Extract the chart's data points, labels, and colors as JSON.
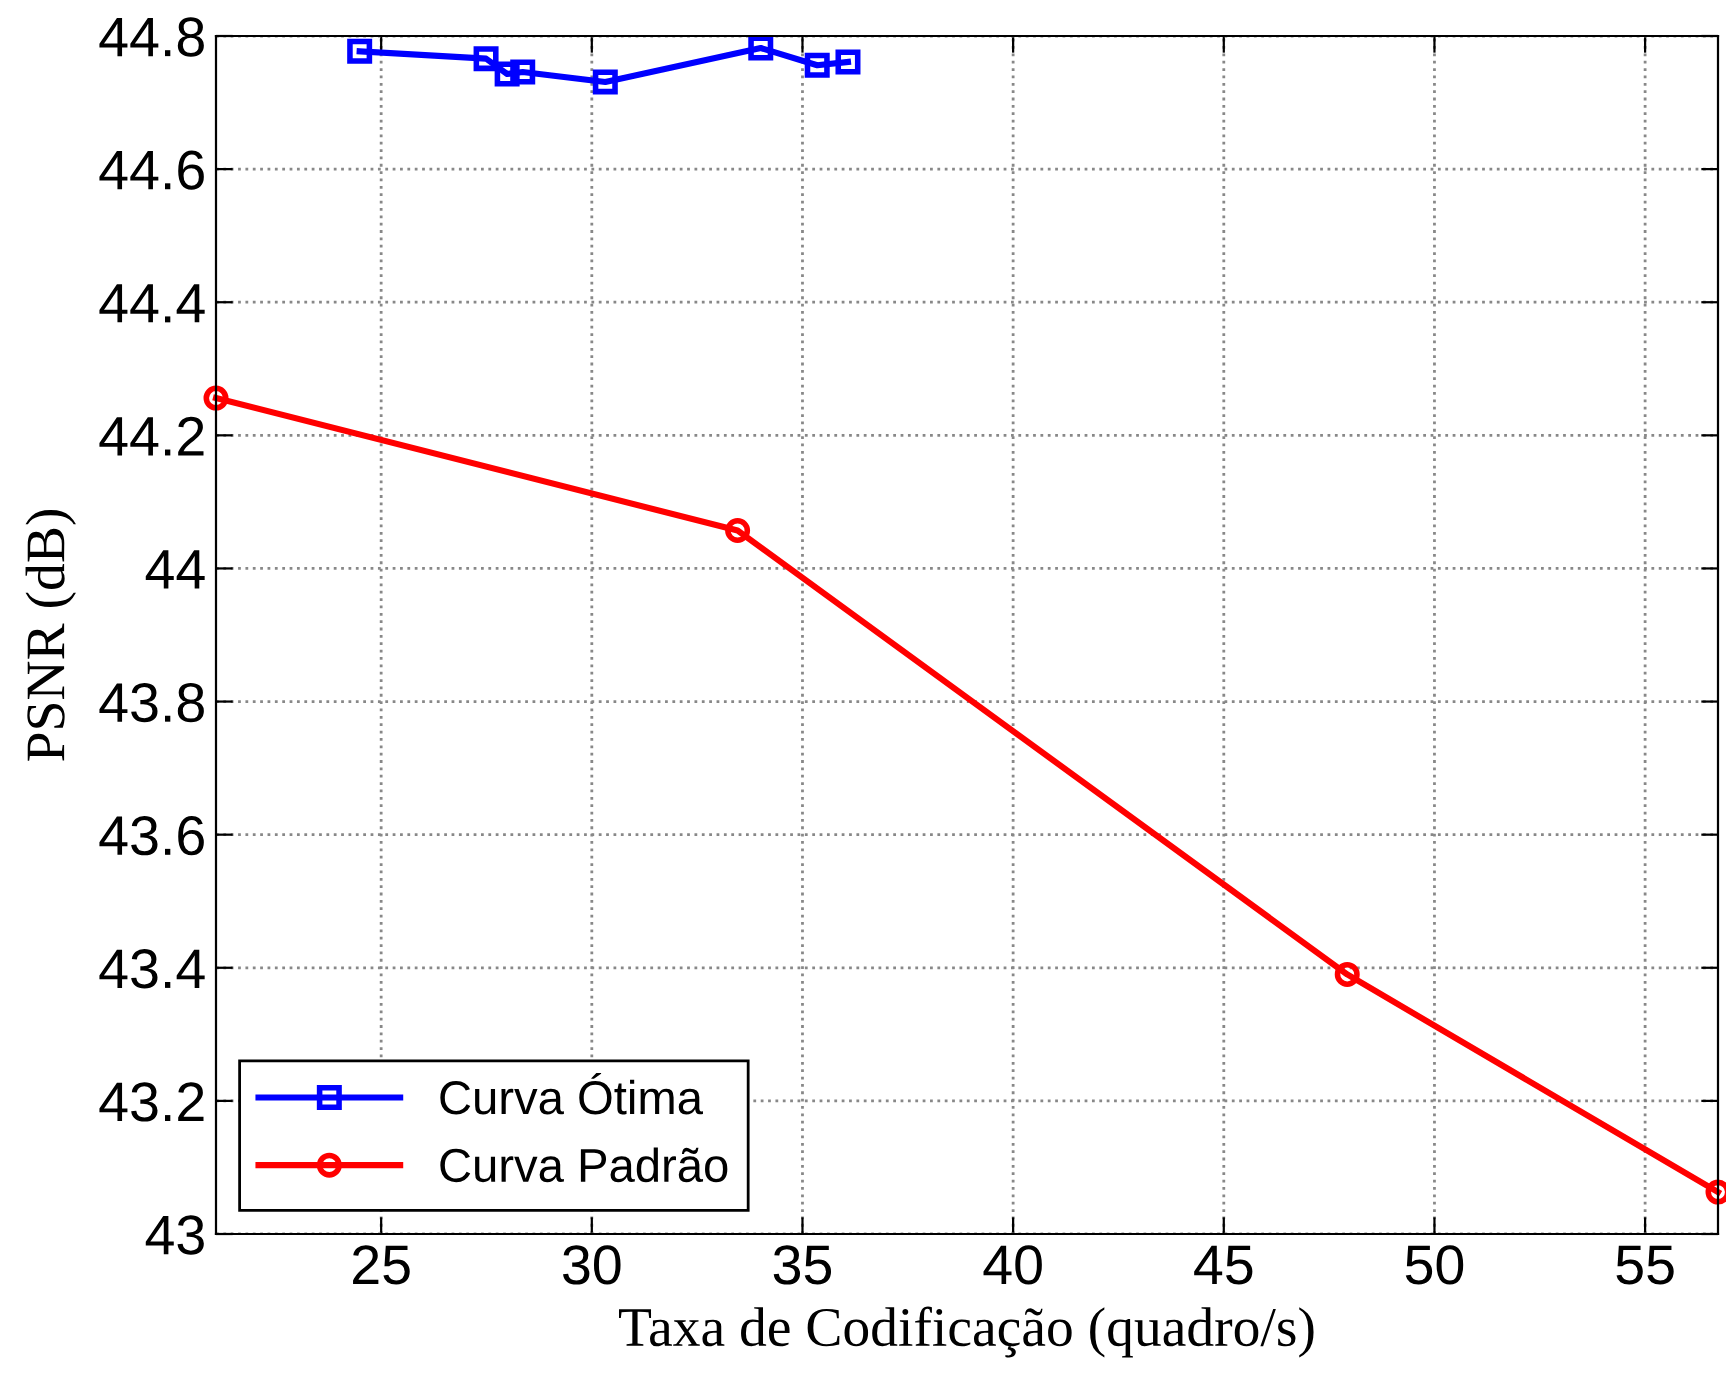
{
  "chart_data": {
    "type": "line",
    "xlabel": "Taxa de Codificação (quadro/s)",
    "ylabel": "PSNR (dB)",
    "series": [
      {
        "name": "Curva Ótima",
        "color": "#0000ff",
        "marker": "square",
        "x": [
          24.49,
          27.49,
          27.99,
          28.36,
          30.32,
          34.01,
          35.35,
          36.08
        ],
        "values": [
          44.777,
          44.766,
          44.743,
          44.746,
          44.731,
          44.782,
          44.756,
          44.761
        ]
      },
      {
        "name": "Curva Padrão",
        "color": "#ff0000",
        "marker": "circle",
        "x": [
          21.08,
          33.46,
          47.93,
          56.73
        ],
        "values": [
          44.256,
          44.057,
          43.39,
          43.063
        ]
      }
    ],
    "xlim": [
      21.08,
      56.73
    ],
    "ylim": [
      43,
      44.8
    ],
    "xticks": [
      25,
      30,
      35,
      40,
      45,
      50,
      55
    ],
    "yticks": [
      43,
      43.2,
      43.4,
      43.6,
      43.8,
      44,
      44.2,
      44.4,
      44.6,
      44.8
    ],
    "grid": true,
    "legend": "bottom left",
    "line_style": "solid"
  }
}
